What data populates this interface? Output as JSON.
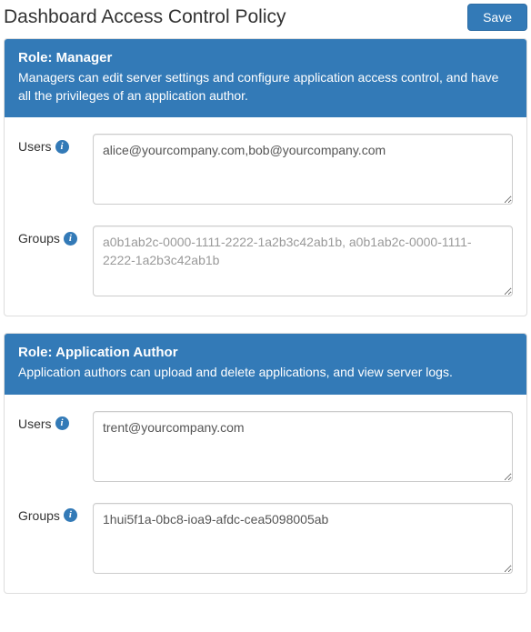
{
  "page": {
    "title": "Dashboard Access Control Policy",
    "save_label": "Save"
  },
  "labels": {
    "users": "Users",
    "groups": "Groups",
    "info_glyph": "i"
  },
  "colors": {
    "primary": "#337ab7",
    "primary_border": "#2e6da4",
    "panel_border": "#dddddd",
    "text": "#333333",
    "input_border": "#cccccc",
    "input_text": "#555555",
    "placeholder": "#999999",
    "background": "#ffffff"
  },
  "roles": [
    {
      "title": "Role: Manager",
      "description": "Managers can edit server settings and configure application access control, and have all the privileges of an application author.",
      "users_value": "alice@yourcompany.com,bob@yourcompany.com",
      "groups_value": "",
      "groups_placeholder": "a0b1ab2c-0000-1111-2222-1a2b3c42ab1b, a0b1ab2c-0000-1111-2222-1a2b3c42ab1b"
    },
    {
      "title": "Role: Application Author",
      "description": "Application authors can upload and delete applications, and view server logs.",
      "users_value": "trent@yourcompany.com",
      "groups_value": "1hui5f1a-0bc8-ioa9-afdc-cea5098005ab",
      "groups_placeholder": ""
    }
  ]
}
